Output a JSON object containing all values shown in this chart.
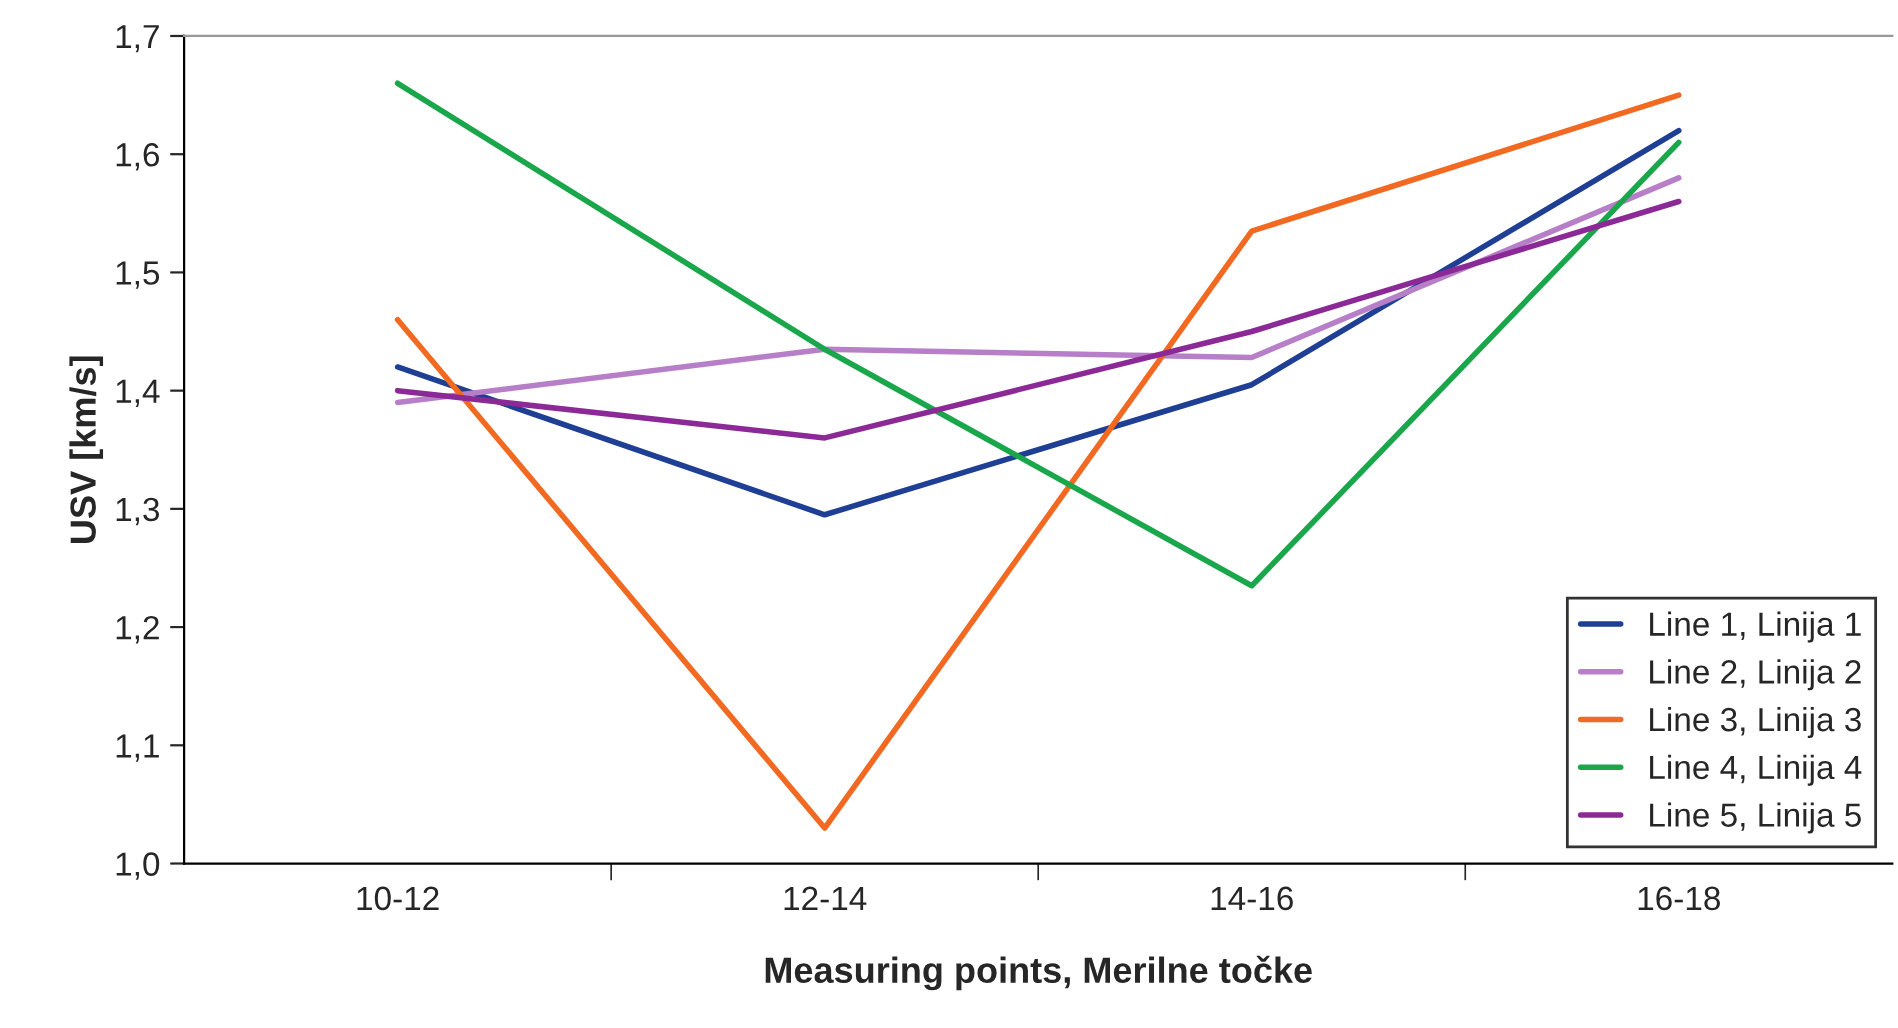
{
  "chart_data": {
    "type": "line",
    "xlabel": "Measuring points, Merilne točke",
    "ylabel": "USV [km/s]",
    "categories": [
      "10-12",
      "12-14",
      "14-16",
      "16-18"
    ],
    "series": [
      {
        "name": "Line 1, Linija 1",
        "color": "#1f3f94",
        "values": [
          1.42,
          1.295,
          1.405,
          1.62
        ]
      },
      {
        "name": "Line 2, Linija 2",
        "color": "#b77fc8",
        "values": [
          1.39,
          1.435,
          1.428,
          1.58
        ]
      },
      {
        "name": "Line 3, Linija 3",
        "color": "#f26a22",
        "values": [
          1.46,
          1.03,
          1.535,
          1.65
        ]
      },
      {
        "name": "Line 4, Linija 4",
        "color": "#1aa64a",
        "values": [
          1.66,
          1.435,
          1.235,
          1.61
        ]
      },
      {
        "name": "Line 5, Linija 5",
        "color": "#8b2a96",
        "values": [
          1.4,
          1.36,
          1.45,
          1.56
        ]
      }
    ],
    "ylim": [
      1.0,
      1.7
    ],
    "yticks": [
      {
        "value": 1.0,
        "label": "1,0"
      },
      {
        "value": 1.1,
        "label": "1,1"
      },
      {
        "value": 1.2,
        "label": "1,2"
      },
      {
        "value": 1.3,
        "label": "1,3"
      },
      {
        "value": 1.4,
        "label": "1,4"
      },
      {
        "value": 1.5,
        "label": "1,5"
      },
      {
        "value": 1.6,
        "label": "1,6"
      },
      {
        "value": 1.7,
        "label": "1,7"
      }
    ],
    "grid": false,
    "legend": "bottom right",
    "marker": "none",
    "line_style": "solid"
  }
}
